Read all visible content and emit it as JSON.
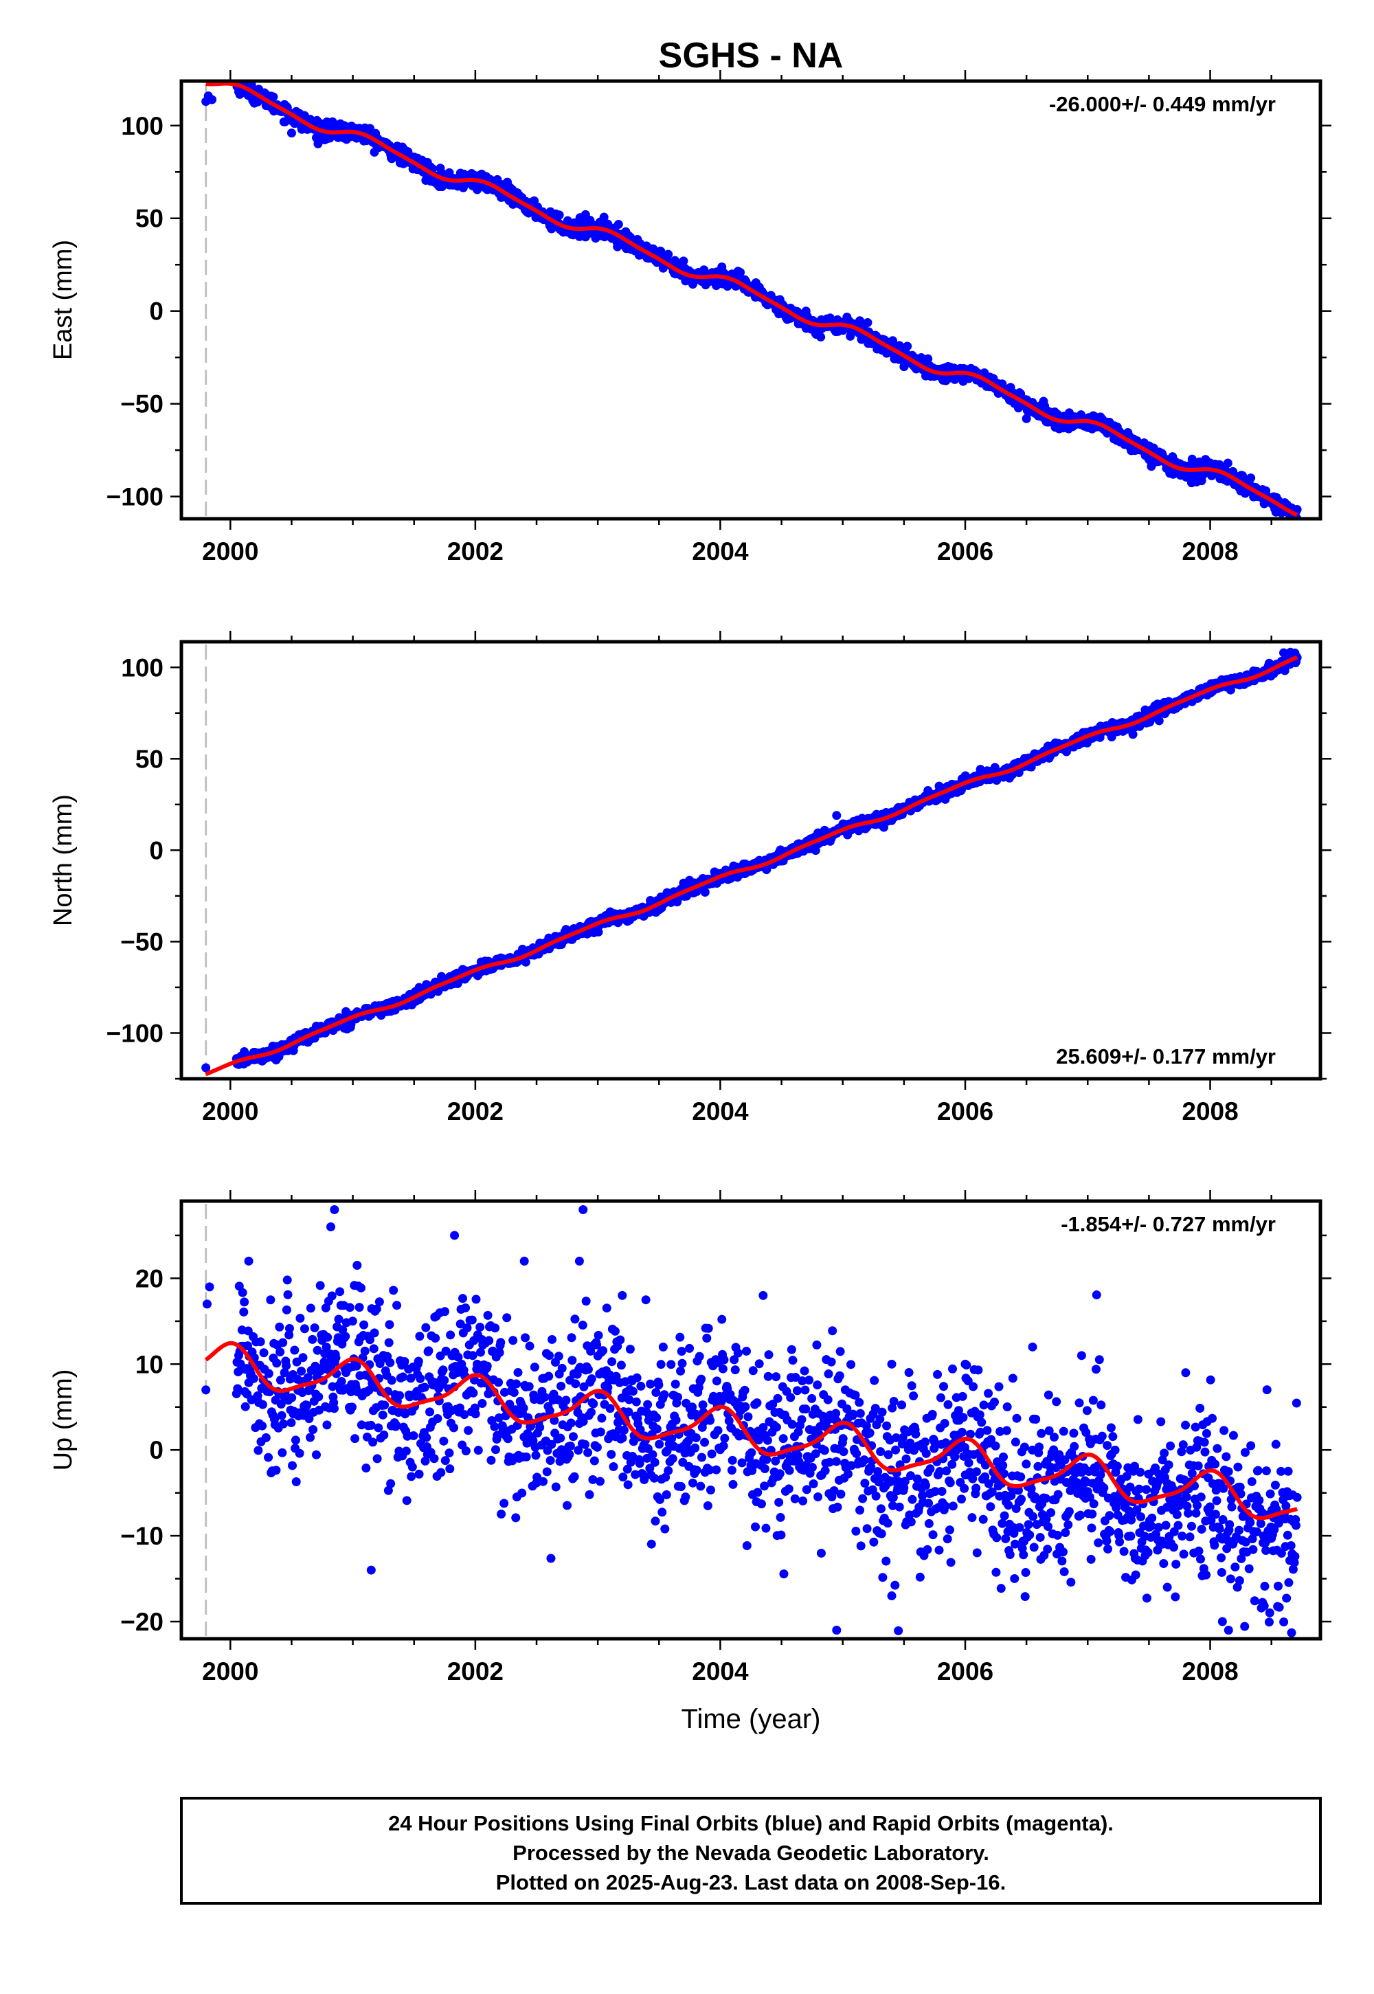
{
  "title": "SGHS - NA",
  "xlabel": "Time (year)",
  "footer": {
    "line1": "24 Hour Positions Using Final Orbits (blue) and Rapid Orbits (magenta).",
    "line2": "Processed by the Nevada Geodetic Laboratory.",
    "line3": "Plotted on 2025-Aug-23. Last data on 2008-Sep-16."
  },
  "colors": {
    "data": "#0000ff",
    "model": "#ff0000",
    "marker_line": "#c0c0c0",
    "frame": "#000000"
  },
  "chart_data": [
    {
      "type": "scatter",
      "panel": "east",
      "ylabel": "East (mm)",
      "rate_label": "-26.000+/- 0.449 mm/yr",
      "rate_position": "top-right",
      "xlim": [
        1999.6,
        2008.9
      ],
      "ylim": [
        -112,
        124
      ],
      "xticks": [
        2000,
        2002,
        2004,
        2006,
        2008
      ],
      "yticks": [
        -100,
        -50,
        0,
        50,
        100
      ],
      "ytick_labels": [
        "−100",
        "−50",
        "0",
        "50",
        "100"
      ],
      "vline_x": 1999.8,
      "x_start": 1999.8,
      "x_end": 2008.71,
      "model": {
        "rate_mm_per_yr": -26.0,
        "value_at_start": 122.5,
        "annual_amp": 3.2,
        "annual_phase": 0.6,
        "semiannual_amp": 0.8,
        "semiannual_phase": 1.2
      },
      "noise_mm": 2.2,
      "points": [
        {
          "x": 1999.8,
          "y": 113
        },
        {
          "x": 1999.82,
          "y": 116
        },
        {
          "x": 1999.85,
          "y": 114
        },
        {
          "x": 2000.5,
          "y": 96
        },
        {
          "x": 2001.6,
          "y": 74
        },
        {
          "x": 2002.9,
          "y": 52
        },
        {
          "x": 2003.7,
          "y": 27
        },
        {
          "x": 2004.7,
          "y": 0
        },
        {
          "x": 2005.5,
          "y": -30
        },
        {
          "x": 2006.5,
          "y": -58
        },
        {
          "x": 2007.5,
          "y": -80
        },
        {
          "x": 2008.6,
          "y": -105
        }
      ]
    },
    {
      "type": "scatter",
      "panel": "north",
      "ylabel": "North (mm)",
      "rate_label": "25.609+/- 0.177 mm/yr",
      "rate_position": "bottom-right",
      "xlim": [
        1999.6,
        2008.9
      ],
      "ylim": [
        -125,
        114
      ],
      "xticks": [
        2000,
        2002,
        2004,
        2006,
        2008
      ],
      "yticks": [
        -100,
        -50,
        0,
        50,
        100
      ],
      "ytick_labels": [
        "−100",
        "−50",
        "0",
        "50",
        "100"
      ],
      "vline_x": 1999.8,
      "x_start": 1999.8,
      "x_end": 2008.71,
      "model": {
        "rate_mm_per_yr": 25.609,
        "value_at_start": -122.5,
        "annual_amp": 1.2,
        "annual_phase": 2.1,
        "semiannual_amp": 0.4,
        "semiannual_phase": 0.3
      },
      "noise_mm": 1.6,
      "points": [
        {
          "x": 1999.8,
          "y": -119
        },
        {
          "x": 2000.3,
          "y": -110
        },
        {
          "x": 2001.5,
          "y": -80
        },
        {
          "x": 2002.6,
          "y": -48
        },
        {
          "x": 2003.7,
          "y": -18
        },
        {
          "x": 2004.95,
          "y": 19
        },
        {
          "x": 2006.0,
          "y": 40
        },
        {
          "x": 2007.0,
          "y": 62
        },
        {
          "x": 2008.6,
          "y": 108
        }
      ]
    },
    {
      "type": "scatter",
      "panel": "up",
      "ylabel": "Up (mm)",
      "rate_label": "-1.854+/- 0.727 mm/yr",
      "rate_position": "top-right",
      "xlim": [
        1999.6,
        2008.9
      ],
      "ylim": [
        -22,
        29
      ],
      "xticks": [
        2000,
        2002,
        2004,
        2006,
        2008
      ],
      "yticks": [
        -20,
        -10,
        0,
        10,
        20
      ],
      "ytick_labels": [
        "−20",
        "−10",
        "0",
        "10",
        "20"
      ],
      "vline_x": 1999.8,
      "x_start": 1999.8,
      "x_end": 2008.71,
      "model": {
        "rate_mm_per_yr": -1.854,
        "value_at_start": 10.5,
        "annual_amp": 2.2,
        "annual_phase": 1.7,
        "semiannual_amp": 0.6,
        "semiannual_phase": 0.9
      },
      "noise_mm": 5.0,
      "points": [
        {
          "x": 1999.81,
          "y": 17
        },
        {
          "x": 1999.83,
          "y": 19
        },
        {
          "x": 1999.8,
          "y": 7
        },
        {
          "x": 2000.85,
          "y": 28
        },
        {
          "x": 2000.82,
          "y": 26
        },
        {
          "x": 2002.88,
          "y": 28
        },
        {
          "x": 2002.85,
          "y": 22
        },
        {
          "x": 2001.83,
          "y": 25
        },
        {
          "x": 2002.4,
          "y": 22
        },
        {
          "x": 2000.15,
          "y": 22
        },
        {
          "x": 2004.35,
          "y": 18
        },
        {
          "x": 2003.2,
          "y": 18
        },
        {
          "x": 2001.15,
          "y": -14
        },
        {
          "x": 2004.95,
          "y": -21
        },
        {
          "x": 2005.4,
          "y": -17
        },
        {
          "x": 2007.65,
          "y": -16
        },
        {
          "x": 2008.1,
          "y": -20
        },
        {
          "x": 2008.15,
          "y": -21
        },
        {
          "x": 2006.55,
          "y": 12
        },
        {
          "x": 2006.0,
          "y": 10
        },
        {
          "x": 2005.4,
          "y": 10
        },
        {
          "x": 2007.8,
          "y": 9
        },
        {
          "x": 2006.95,
          "y": 11
        }
      ]
    }
  ]
}
